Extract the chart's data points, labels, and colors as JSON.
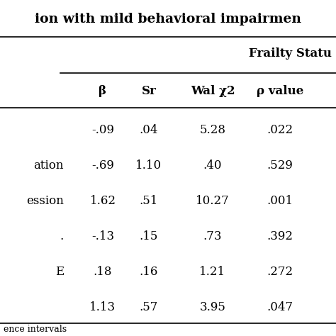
{
  "title_text": "ion with mild behavioral impairmen",
  "frailty_header": "Frailty Statu",
  "col_headers": [
    "β",
    "Sr",
    "Wal χ2",
    "ρ value"
  ],
  "row_labels": [
    "",
    "ation",
    "ession",
    ".",
    "E",
    ""
  ],
  "table_data": [
    [
      "-.09",
      ".04",
      "5.28",
      ".022"
    ],
    [
      "-.69",
      "1.10",
      ".40",
      ".529"
    ],
    [
      "1.62",
      ".51",
      "10.27",
      ".001"
    ],
    [
      "-.13",
      ".15",
      ".73",
      ".392"
    ],
    [
      ".18",
      ".16",
      "1.21",
      ".272"
    ],
    [
      "1.13",
      ".57",
      "3.95",
      ".047"
    ]
  ],
  "footnote": "ence intervals",
  "bg_color": "#ffffff",
  "text_color": "#000000",
  "figsize": [
    4.74,
    4.74
  ],
  "dpi": 100
}
